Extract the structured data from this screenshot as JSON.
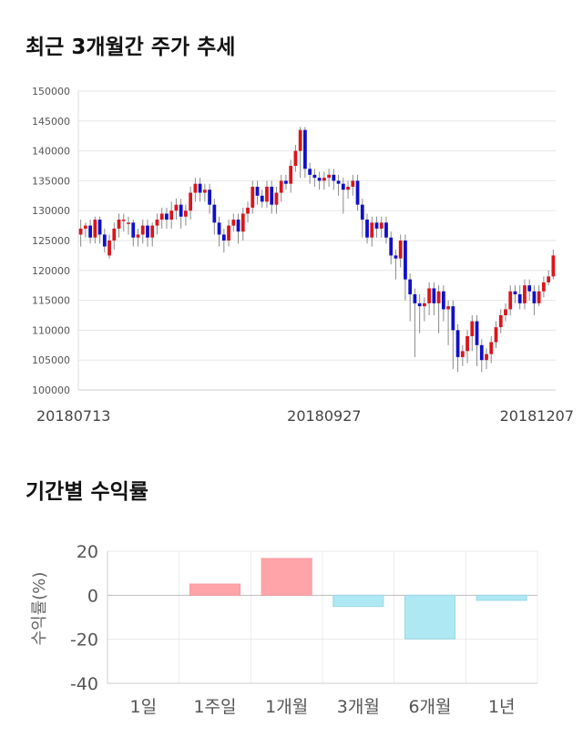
{
  "titles": {
    "price_chart": "최근 3개월간 주가 추세",
    "returns_chart": "기간별 수익률"
  },
  "colors": {
    "up": "#d9161c",
    "down": "#1010c8",
    "positive_bar": "#ffa4a8",
    "negative_bar": "#aee8f2",
    "grid": "#e6e6e6"
  },
  "chart_data": [
    {
      "type": "candlestick",
      "title": "최근 3개월간 주가 추세",
      "ylim": [
        100000,
        150000
      ],
      "yticks": [
        100000,
        105000,
        110000,
        115000,
        120000,
        125000,
        130000,
        135000,
        140000,
        145000,
        150000
      ],
      "xtick_labels": [
        "20180713",
        "20180927",
        "20181207"
      ],
      "xtick_index": [
        0,
        51,
        99
      ],
      "grid": true,
      "close": [
        127000,
        127500,
        125500,
        128500,
        126000,
        124000,
        125000,
        127000,
        128500,
        128500,
        128000,
        125500,
        126000,
        127500,
        125500,
        127500,
        128500,
        129500,
        128500,
        130000,
        131000,
        129000,
        130000,
        133000,
        134500,
        133000,
        133500,
        131000,
        128000,
        126000,
        125000,
        127500,
        128500,
        126500,
        129500,
        130500,
        134000,
        132500,
        131500,
        134000,
        131000,
        133000,
        135000,
        134500,
        137500,
        140000,
        143500,
        137000,
        136000,
        135500,
        135000,
        135500,
        136000,
        135000,
        134500,
        133500,
        134000,
        135000,
        131000,
        128500,
        125500,
        128000,
        127000,
        128000,
        125500,
        122500,
        122000,
        125000,
        118500,
        116000,
        114500,
        114000,
        114500,
        117000,
        114500,
        116500,
        113500,
        114000,
        110000,
        105500,
        106500,
        109000,
        111500,
        107500,
        105000,
        106000,
        108000,
        110500,
        112500,
        113500,
        116500,
        116000,
        114500,
        117500,
        116500,
        114500,
        116500,
        118000,
        119000,
        122500
      ],
      "open": [
        126000,
        127000,
        127500,
        125500,
        128500,
        126000,
        122500,
        125000,
        127000,
        128500,
        128000,
        128000,
        125500,
        126000,
        127500,
        125500,
        127500,
        128500,
        129500,
        128500,
        130000,
        131000,
        129000,
        130000,
        133000,
        134500,
        133000,
        133500,
        131000,
        128000,
        126000,
        125000,
        127500,
        128500,
        126500,
        129500,
        130500,
        134000,
        132500,
        131500,
        134000,
        131000,
        133000,
        135000,
        134500,
        137500,
        140000,
        143500,
        137000,
        136000,
        135500,
        135000,
        135500,
        136000,
        135000,
        134500,
        133500,
        134000,
        135000,
        131000,
        128500,
        125500,
        128000,
        127000,
        128000,
        125500,
        122500,
        122000,
        125000,
        118500,
        116000,
        114500,
        114000,
        114500,
        117000,
        114500,
        116500,
        113500,
        114000,
        110000,
        105500,
        106500,
        109000,
        111500,
        107500,
        105000,
        106000,
        108000,
        110500,
        112500,
        113500,
        116500,
        116000,
        114500,
        117500,
        116500,
        114500,
        116500,
        118000,
        119000
      ],
      "high": [
        128500,
        128000,
        128500,
        129000,
        129000,
        127000,
        126000,
        128000,
        129500,
        129500,
        129000,
        128500,
        127000,
        128500,
        128500,
        128000,
        129500,
        130500,
        130500,
        131500,
        132000,
        132000,
        131000,
        134000,
        135500,
        135500,
        134500,
        134500,
        132000,
        129000,
        127000,
        128500,
        129500,
        129500,
        130500,
        131500,
        135000,
        135000,
        133500,
        135000,
        135000,
        134000,
        136000,
        136000,
        138500,
        141000,
        144000,
        144000,
        138000,
        137000,
        136500,
        136500,
        137000,
        137000,
        136000,
        135500,
        135000,
        136000,
        136000,
        132000,
        129500,
        129000,
        129000,
        129000,
        129000,
        126500,
        123500,
        126000,
        126000,
        119500,
        117000,
        116000,
        115500,
        118000,
        118000,
        117500,
        117500,
        115000,
        115000,
        111000,
        107500,
        110000,
        112500,
        112500,
        108500,
        107000,
        109000,
        111500,
        113500,
        114500,
        117500,
        117500,
        117500,
        118500,
        118500,
        117500,
        117500,
        119000,
        120000,
        123500
      ],
      "low": [
        124000,
        125500,
        124500,
        124500,
        124500,
        123000,
        122000,
        123500,
        125500,
        126500,
        126000,
        124000,
        124000,
        124500,
        124000,
        124000,
        126000,
        127000,
        127000,
        127000,
        128500,
        127000,
        127500,
        128500,
        131500,
        131500,
        131500,
        129500,
        126000,
        124000,
        123000,
        124000,
        126500,
        124500,
        125000,
        128000,
        129500,
        131000,
        130500,
        130500,
        129500,
        129500,
        131500,
        133500,
        133000,
        136500,
        135500,
        135500,
        134500,
        134000,
        133500,
        133500,
        134000,
        133500,
        132500,
        129500,
        132000,
        132500,
        130000,
        125500,
        124500,
        124000,
        125500,
        125500,
        124500,
        121000,
        118500,
        120500,
        115000,
        111500,
        105500,
        109500,
        111500,
        112500,
        112500,
        109500,
        111500,
        107500,
        103500,
        103000,
        104000,
        104500,
        106500,
        104000,
        103000,
        103500,
        104500,
        107000,
        109500,
        111500,
        112500,
        114500,
        113500,
        113500,
        115000,
        112500,
        114000,
        115500,
        117500,
        118500
      ]
    },
    {
      "type": "bar",
      "title": "기간별 수익률",
      "categories": [
        "1일",
        "1주일",
        "1개월",
        "3개월",
        "6개월",
        "1년"
      ],
      "values": [
        0,
        5.1,
        16.7,
        -5.1,
        -19.8,
        -2.3
      ],
      "ylabel": "수익률(%)",
      "ylim": [
        -40,
        20
      ],
      "yticks": [
        20,
        0,
        -20,
        -40
      ],
      "grid": true
    }
  ]
}
